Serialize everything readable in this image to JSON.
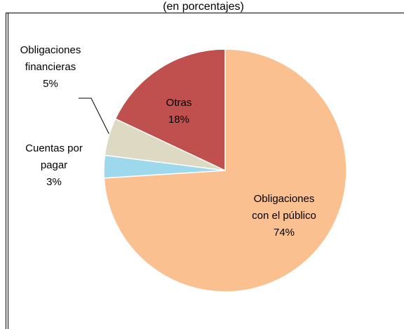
{
  "chart_data": {
    "type": "pie",
    "title": "(en porcentajes)",
    "categories": [
      "Obligaciones con el público",
      "Cuentas por pagar",
      "Obligaciones financieras",
      "Otras"
    ],
    "values": [
      74,
      3,
      5,
      18
    ],
    "value_labels": [
      "74%",
      "3%",
      "5%",
      "18%"
    ],
    "colors": [
      "#fac090",
      "#9ed8ec",
      "#ddd9c3",
      "#c0504d"
    ]
  }
}
